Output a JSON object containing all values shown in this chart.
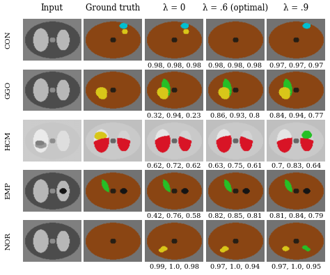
{
  "col_headers": [
    "Input",
    "Ground truth",
    "λ = 0",
    "λ = .6 (optimal)",
    "λ = .9"
  ],
  "row_labels": [
    "CON",
    "GGO",
    "HCM",
    "EMP",
    "NOR"
  ],
  "scores": {
    "CON": [
      "",
      "",
      "0.98, 0.98, 0.98",
      "0.98, 0.98, 0.98",
      "0.97, 0.97, 0.97"
    ],
    "GGO": [
      "",
      "",
      "0.32, 0.94, 0.23",
      "0.86, 0.93, 0.8",
      "0.84, 0.94, 0.77"
    ],
    "HCM": [
      "",
      "",
      "0.62, 0.72, 0.62",
      "0.63, 0.75, 0.61",
      "0.7, 0.83, 0.64"
    ],
    "EMP": [
      "",
      "",
      "0.42, 0.76, 0.58",
      "0.82, 0.85, 0.81",
      "0.81, 0.84, 0.79"
    ],
    "NOR": [
      "",
      "",
      "0.99, 1.0, 0.98",
      "0.97, 1.0, 0.94",
      "0.97, 1.0, 0.95"
    ]
  },
  "bg_outside": [
    0.45,
    0.45,
    0.45
  ],
  "bg_body": [
    0.25,
    0.22,
    0.2
  ],
  "brown": [
    0.545,
    0.271,
    0.075
  ],
  "cyan": [
    0.0,
    0.75,
    0.82
  ],
  "yellow": [
    0.85,
    0.78,
    0.1
  ],
  "green": [
    0.15,
    0.75,
    0.15
  ],
  "red": [
    0.85,
    0.08,
    0.15
  ],
  "white_lung": [
    0.9,
    0.9,
    0.9
  ],
  "dark_nodule": [
    0.08,
    0.08,
    0.08
  ],
  "input_body": [
    0.3,
    0.3,
    0.3
  ],
  "input_lung": [
    0.72,
    0.72,
    0.72
  ],
  "input_bg": [
    0.5,
    0.5,
    0.5
  ],
  "input_hcm_bg": [
    0.8,
    0.8,
    0.8
  ],
  "input_hcm_lung": [
    0.92,
    0.92,
    0.92
  ],
  "fig_width": 4.74,
  "fig_height": 3.95,
  "dpi": 100,
  "score_fontsize": 7.0,
  "header_fontsize": 8.5,
  "row_label_fontsize": 7.5,
  "background_color": "#ffffff",
  "text_color": "#000000"
}
